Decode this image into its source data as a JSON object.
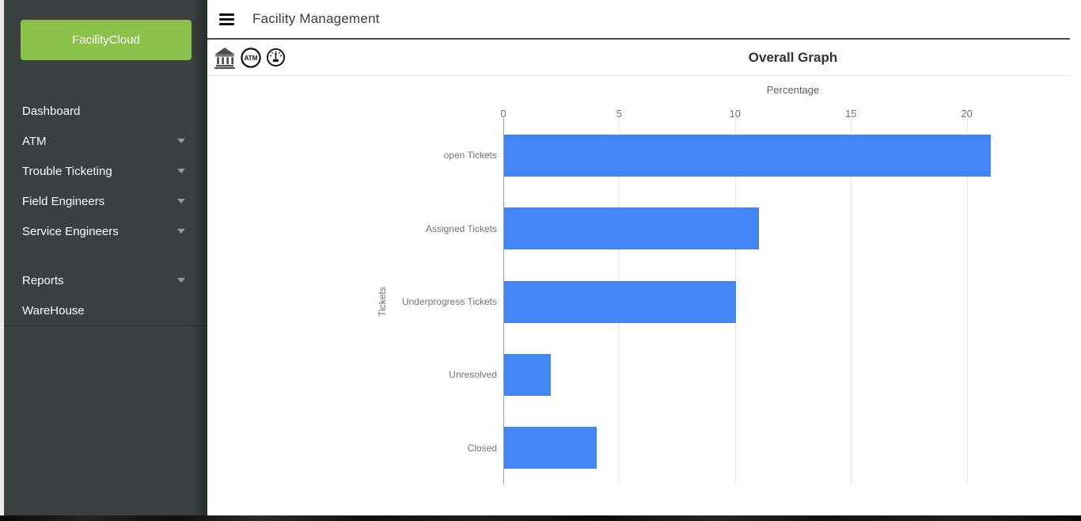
{
  "app": {
    "title": "Facility Management",
    "brand": "FacilityCloud"
  },
  "sidebar": {
    "items": [
      {
        "label": "Dashboard",
        "expandable": false,
        "spacer_before": false
      },
      {
        "label": "ATM",
        "expandable": true,
        "spacer_before": false
      },
      {
        "label": "Trouble Ticketing",
        "expandable": true,
        "spacer_before": false
      },
      {
        "label": "Field Engineers",
        "expandable": true,
        "spacer_before": false
      },
      {
        "label": "Service Engineers",
        "expandable": true,
        "spacer_before": false
      },
      {
        "label": "Reports",
        "expandable": true,
        "spacer_before": true
      },
      {
        "label": "WareHouse",
        "expandable": false,
        "spacer_before": false
      }
    ]
  },
  "toolbar": {
    "icons": [
      {
        "name": "bank-icon"
      },
      {
        "name": "atm-icon",
        "label": "ATM"
      },
      {
        "name": "gauge-icon"
      }
    ]
  },
  "chart_data": {
    "type": "bar",
    "orientation": "horizontal",
    "title": "Overall Graph",
    "xlabel": "Percentage",
    "ylabel": "Tickets",
    "categories": [
      "open Tickets",
      "Assigned Tickets",
      "Underprogress Tickets",
      "Unresolved",
      "Closed"
    ],
    "values": [
      21,
      11,
      10,
      2,
      4
    ],
    "xlim": [
      0,
      25
    ],
    "xticks": [
      0,
      5,
      10,
      15,
      20
    ],
    "grid": true,
    "legend": "none",
    "bar_color": "#4285f4"
  },
  "colors": {
    "accent_green": "#8bc34a",
    "bar_blue": "#4285f4",
    "sidebar_bg": "#3a4040",
    "gridline": "#e6e6e6",
    "axis": "#9e9e9e"
  }
}
